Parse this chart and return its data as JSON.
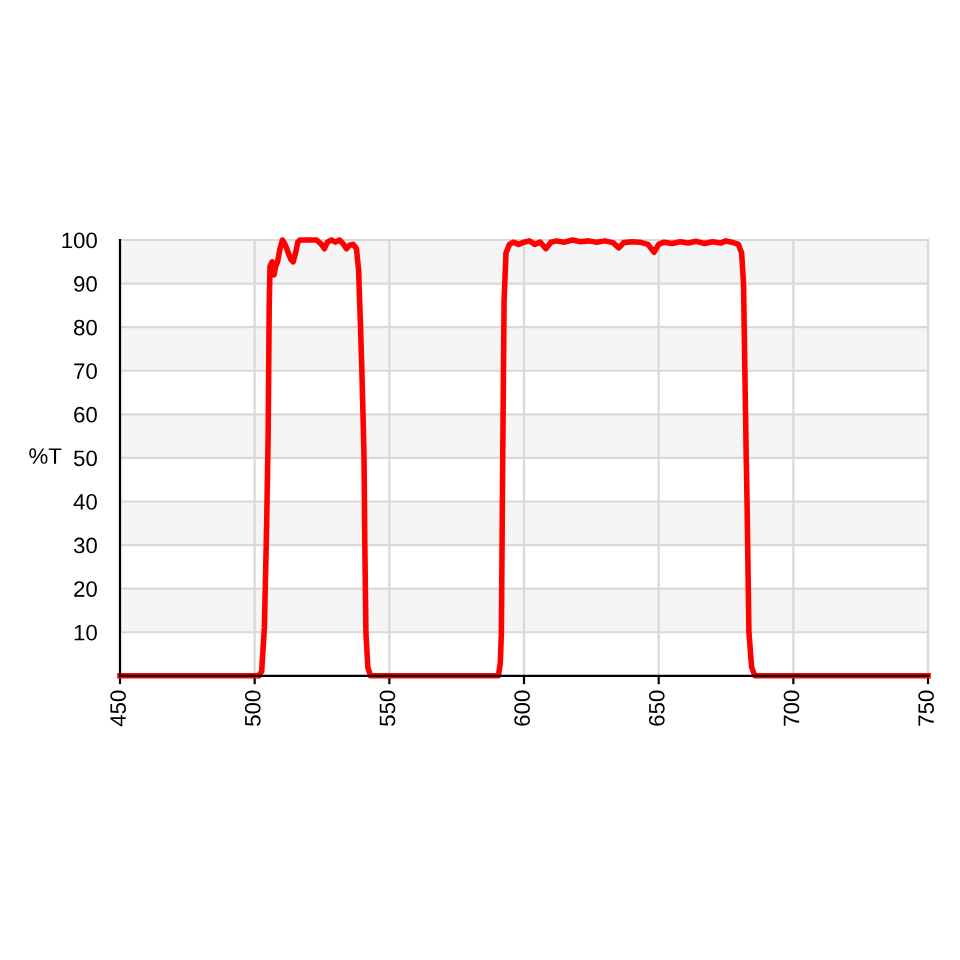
{
  "chart_data": {
    "type": "line",
    "ylabel": "%T",
    "color": "#ff0000",
    "line_style": "solid",
    "grid": true,
    "xlim": [
      450,
      750
    ],
    "xticks": [
      450,
      500,
      550,
      600,
      650,
      700,
      750
    ],
    "ylim": [
      0,
      100
    ],
    "yticks": [
      10,
      20,
      30,
      40,
      50,
      60,
      70,
      80,
      90,
      100
    ],
    "bands": [
      {
        "axis": "y",
        "from": 10,
        "to": 20,
        "color": "#f5f5f5"
      },
      {
        "axis": "y",
        "from": 30,
        "to": 40,
        "color": "#f5f5f5"
      },
      {
        "axis": "y",
        "from": 50,
        "to": 60,
        "color": "#f5f5f5"
      },
      {
        "axis": "y",
        "from": 70,
        "to": 80,
        "color": "#f5f5f5"
      },
      {
        "axis": "y",
        "from": 90,
        "to": 100,
        "color": "#f5f5f5"
      }
    ],
    "x": [
      450,
      501.5,
      502.6,
      503.6,
      504.4,
      505.0,
      505.4,
      505.7,
      506.5,
      507.2,
      507.8,
      508.5,
      509.4,
      510.3,
      511.3,
      512.5,
      513.5,
      514.3,
      515.2,
      516.0,
      516.8,
      520,
      523,
      524.8,
      525.9,
      527,
      528.5,
      530,
      531.5,
      533,
      534.1,
      535.3,
      536.6,
      537.8,
      538.6,
      539.3,
      539.8,
      540.3,
      540.6,
      540.9,
      541.3,
      542.0,
      543.0,
      590.5,
      591.2,
      591.6,
      592.1,
      592.6,
      593.3,
      594.6,
      596,
      598,
      600,
      602,
      604,
      606,
      608.1,
      610,
      612,
      615,
      618,
      621,
      624,
      627,
      630,
      633,
      635.2,
      637,
      640,
      643,
      646,
      648.3,
      650,
      652,
      655,
      658,
      661,
      664,
      667,
      670,
      673,
      675,
      677.1,
      679.6,
      680.8,
      681.5,
      682,
      682.5,
      682.8,
      683.5,
      684.5,
      685.7,
      750
    ],
    "values": [
      0,
      0,
      1,
      11,
      33,
      55,
      85,
      94,
      95,
      92,
      94,
      95,
      98,
      100,
      99,
      97,
      95.5,
      95,
      97,
      99.5,
      100,
      100,
      100,
      99,
      98,
      99.5,
      100,
      99.5,
      100,
      99,
      98,
      98.8,
      99,
      98,
      93,
      80,
      70,
      58,
      50,
      30,
      10,
      2,
      0,
      0,
      3,
      10,
      50,
      86,
      97,
      99,
      99.5,
      99,
      99.5,
      99.8,
      99,
      99.5,
      98,
      99.5,
      99.8,
      99.5,
      100,
      99.6,
      99.8,
      99.5,
      99.8,
      99.4,
      98.2,
      99.4,
      99.6,
      99.5,
      99,
      97.2,
      99,
      99.5,
      99.2,
      99.6,
      99.3,
      99.7,
      99.2,
      99.6,
      99.3,
      99.8,
      99.5,
      99,
      97,
      90,
      70,
      50,
      40,
      10,
      2,
      0,
      0
    ]
  }
}
